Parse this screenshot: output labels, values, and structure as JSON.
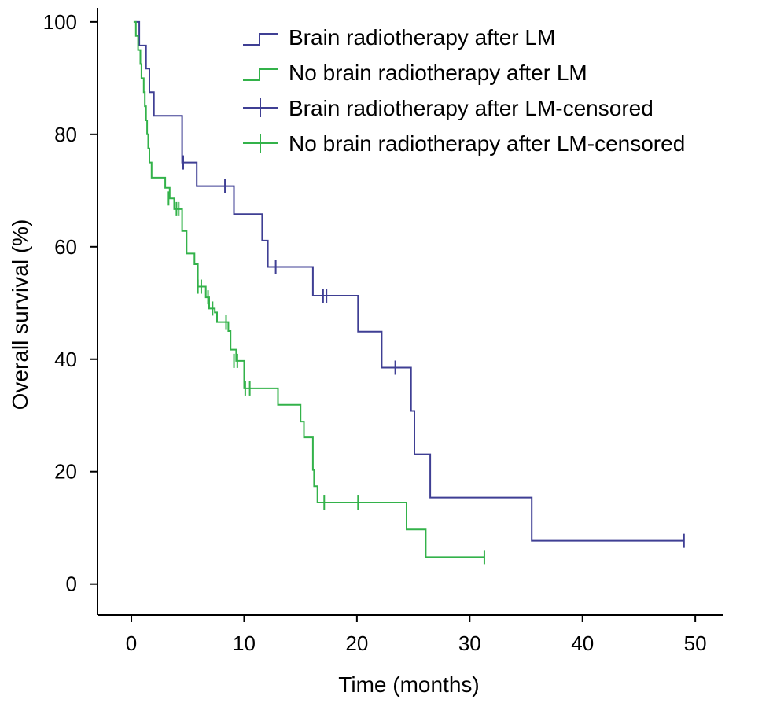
{
  "chart_data": {
    "type": "line",
    "xlabel": "Time (months)",
    "ylabel": "Overall survival (%)",
    "xlim": [
      -3,
      52.5
    ],
    "ylim": [
      -5.5,
      102.5
    ],
    "xticks": [
      0,
      10,
      20,
      30,
      40,
      50
    ],
    "yticks": [
      0,
      20,
      40,
      60,
      80,
      100
    ],
    "grid": false,
    "legend_position": "top-right",
    "series": [
      {
        "name": "Brain radiotherapy after LM",
        "color": "#3f3f94",
        "steps": [
          [
            0.3,
            100
          ],
          [
            0.7,
            100
          ],
          [
            0.7,
            95.8
          ],
          [
            1.3,
            95.8
          ],
          [
            1.3,
            91.7
          ],
          [
            1.6,
            91.7
          ],
          [
            1.6,
            87.5
          ],
          [
            2,
            87.5
          ],
          [
            2,
            83.3
          ],
          [
            4.5,
            83.3
          ],
          [
            4.5,
            75
          ],
          [
            5.8,
            75
          ],
          [
            5.8,
            70.8
          ],
          [
            9.1,
            70.8
          ],
          [
            9.1,
            65.8
          ],
          [
            11.6,
            65.8
          ],
          [
            11.6,
            61.1
          ],
          [
            12.1,
            61.1
          ],
          [
            12.1,
            56.4
          ],
          [
            16.1,
            56.4
          ],
          [
            16.1,
            51.3
          ],
          [
            20.1,
            51.3
          ],
          [
            20.1,
            44.9
          ],
          [
            22.2,
            44.9
          ],
          [
            22.2,
            38.5
          ],
          [
            24.8,
            38.5
          ],
          [
            24.8,
            30.8
          ],
          [
            25.1,
            30.8
          ],
          [
            25.1,
            23.1
          ],
          [
            26.5,
            23.1
          ],
          [
            26.5,
            15.4
          ],
          [
            35.5,
            15.4
          ],
          [
            35.5,
            7.7
          ],
          [
            49,
            7.7
          ]
        ]
      },
      {
        "name": "No brain radiotherapy after LM",
        "color": "#33b24a",
        "steps": [
          [
            0.2,
            100
          ],
          [
            0.4,
            100
          ],
          [
            0.4,
            97.5
          ],
          [
            0.6,
            97.5
          ],
          [
            0.6,
            95
          ],
          [
            0.8,
            95
          ],
          [
            0.8,
            92.5
          ],
          [
            0.9,
            92.5
          ],
          [
            0.9,
            90
          ],
          [
            1.1,
            90
          ],
          [
            1.1,
            87.5
          ],
          [
            1.2,
            87.5
          ],
          [
            1.2,
            85
          ],
          [
            1.3,
            85
          ],
          [
            1.3,
            82.5
          ],
          [
            1.4,
            82.5
          ],
          [
            1.4,
            80
          ],
          [
            1.5,
            80
          ],
          [
            1.5,
            77.5
          ],
          [
            1.6,
            77.5
          ],
          [
            1.6,
            75
          ],
          [
            1.8,
            75
          ],
          [
            1.8,
            72.3
          ],
          [
            3,
            72.3
          ],
          [
            3,
            70.5
          ],
          [
            3.4,
            70.5
          ],
          [
            3.4,
            68.6
          ],
          [
            3.8,
            68.6
          ],
          [
            3.8,
            66.7
          ],
          [
            4.5,
            66.7
          ],
          [
            4.5,
            62.8
          ],
          [
            4.9,
            62.8
          ],
          [
            4.9,
            58.8
          ],
          [
            5.6,
            58.8
          ],
          [
            5.6,
            56.9
          ],
          [
            5.9,
            56.9
          ],
          [
            5.9,
            52.9
          ],
          [
            6.6,
            52.9
          ],
          [
            6.6,
            51
          ],
          [
            6.9,
            51
          ],
          [
            6.9,
            49
          ],
          [
            7.4,
            49
          ],
          [
            7.4,
            48.3
          ],
          [
            7.6,
            48.3
          ],
          [
            7.6,
            46.6
          ],
          [
            8.6,
            46.6
          ],
          [
            8.6,
            45
          ],
          [
            8.8,
            45
          ],
          [
            8.8,
            41.7
          ],
          [
            9.3,
            41.7
          ],
          [
            9.3,
            39.7
          ],
          [
            10,
            39.7
          ],
          [
            10,
            34.8
          ],
          [
            13,
            34.8
          ],
          [
            13,
            31.9
          ],
          [
            15,
            31.9
          ],
          [
            15,
            28.9
          ],
          [
            15.3,
            28.9
          ],
          [
            15.3,
            26.1
          ],
          [
            16.1,
            26.1
          ],
          [
            16.1,
            20.3
          ],
          [
            16.2,
            20.3
          ],
          [
            16.2,
            17.4
          ],
          [
            16.5,
            17.4
          ],
          [
            16.5,
            14.5
          ],
          [
            24.4,
            14.5
          ],
          [
            24.4,
            9.7
          ],
          [
            26.1,
            9.7
          ],
          [
            26.1,
            4.8
          ],
          [
            31.3,
            4.8
          ]
        ]
      },
      {
        "name": "Brain radiotherapy after LM-censored",
        "color": "#3f3f94",
        "points": [
          [
            4.6,
            75
          ],
          [
            8.3,
            70.8
          ],
          [
            12.8,
            56.4
          ],
          [
            17,
            51.3
          ],
          [
            17.3,
            51.3
          ],
          [
            23.4,
            38.5
          ],
          [
            49,
            7.7
          ]
        ]
      },
      {
        "name": "No brain radiotherapy after LM-censored",
        "color": "#33b24a",
        "points": [
          [
            3.3,
            68.6
          ],
          [
            4,
            66.7
          ],
          [
            4.2,
            66.7
          ],
          [
            5.9,
            52.9
          ],
          [
            6.2,
            52.9
          ],
          [
            6.8,
            51
          ],
          [
            7.2,
            49
          ],
          [
            8.4,
            46.6
          ],
          [
            9.1,
            39.7
          ],
          [
            9.4,
            39.7
          ],
          [
            10.1,
            34.8
          ],
          [
            10.5,
            34.8
          ],
          [
            17.1,
            14.5
          ],
          [
            20.1,
            14.5
          ],
          [
            31.3,
            4.8
          ]
        ]
      }
    ]
  }
}
